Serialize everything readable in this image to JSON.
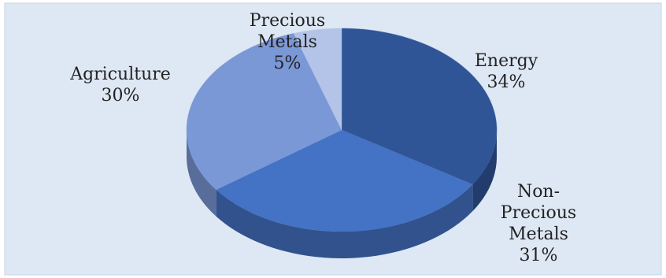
{
  "chart_data": {
    "type": "pie",
    "style": "3d",
    "title": "",
    "legend": "none",
    "slices": [
      {
        "category": "Energy",
        "label_lines": [
          "Energy"
        ],
        "value": 34,
        "value_label": "34%",
        "color": "#2f5597"
      },
      {
        "category": "Non-Precious Metals",
        "label_lines": [
          "Non-",
          "Precious",
          "Metals"
        ],
        "value": 31,
        "value_label": "31%",
        "color": "#4472c4"
      },
      {
        "category": "Agriculture",
        "label_lines": [
          "Agriculture"
        ],
        "value": 30,
        "value_label": "30%",
        "color": "#7a97d6"
      },
      {
        "category": "Precious Metals",
        "label_lines": [
          "Precious",
          "Metals"
        ],
        "value": 5,
        "value_label": "5%",
        "color": "#b4c4e8"
      }
    ],
    "colors": {
      "plot_background": "#dee8f4",
      "border": "#c6d3e3"
    }
  }
}
